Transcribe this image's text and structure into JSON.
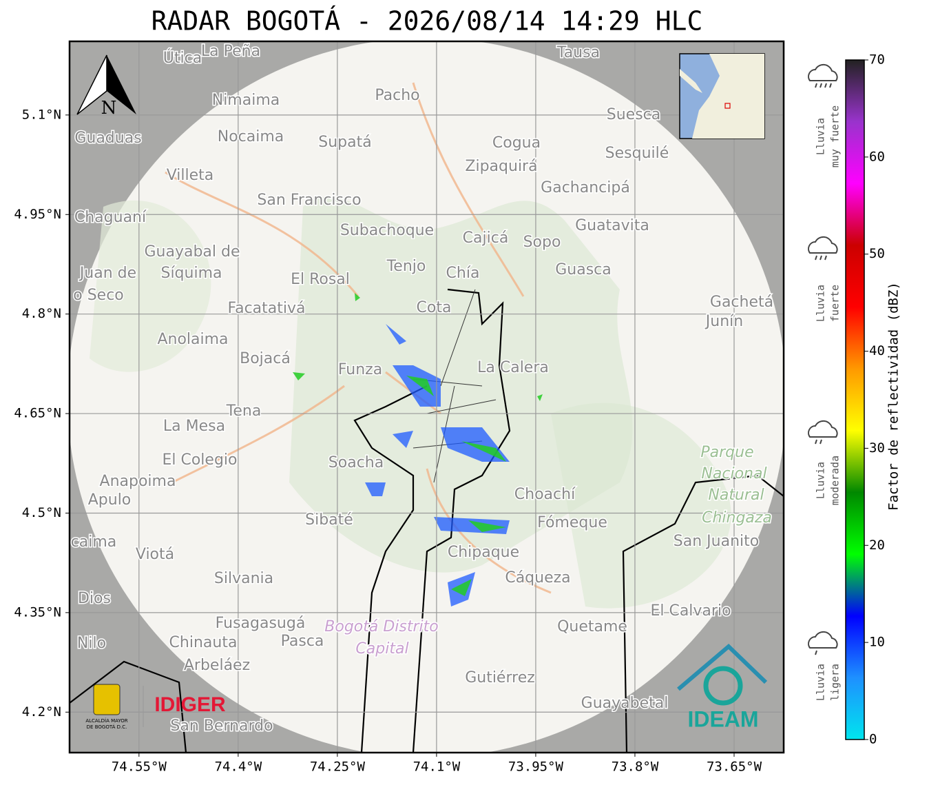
{
  "title": "RADAR BOGOTÁ - 2026/08/14 14:29 HLC",
  "north": "N",
  "map": {
    "xlim": [
      -74.655,
      -73.575
    ],
    "ylim": [
      4.139,
      5.211
    ],
    "xticks": [
      {
        "value": -74.55,
        "label": "74.55°W"
      },
      {
        "value": -74.4,
        "label": "74.4°W"
      },
      {
        "value": -74.25,
        "label": "74.25°W"
      },
      {
        "value": -74.1,
        "label": "74.1°W"
      },
      {
        "value": -73.95,
        "label": "73.95°W"
      },
      {
        "value": -73.8,
        "label": "73.8°W"
      },
      {
        "value": -73.65,
        "label": "73.65°W"
      }
    ],
    "yticks": [
      {
        "value": 4.2,
        "label": "4.2°N"
      },
      {
        "value": 4.35,
        "label": "4.35°N"
      },
      {
        "value": 4.5,
        "label": "4.5°N"
      },
      {
        "value": 4.65,
        "label": "4.65°N"
      },
      {
        "value": 4.8,
        "label": "4.8°N"
      },
      {
        "value": 4.95,
        "label": "4.95°N"
      },
      {
        "value": 5.1,
        "label": "5.1°N"
      }
    ],
    "grid": true,
    "places": [
      "Útica",
      "La Peña",
      "Tausa",
      "Pacho",
      "Nimaima",
      "Guaduas",
      "Nocaima",
      "Supatá",
      "Cogua",
      "Suesca",
      "Sesquilé",
      "Zipaquirá",
      "Villeta",
      "Gachancipá",
      "San Francisco",
      "Chaguaní",
      "Guatavita",
      "Subachoque",
      "Cajicá",
      "Sopo",
      "Guayabal de",
      "Síquima",
      "Juan de",
      "o Seco",
      "Tenjo",
      "Chía",
      "Guasca",
      "El Rosal",
      "Facatativá",
      "Cota",
      "Gachetá",
      "Junín",
      "Anolaima",
      "Bojacá",
      "Funza",
      "La Calera",
      "Tena",
      "La Mesa",
      "Parque",
      "Nacional",
      "Natural",
      "Chingaza",
      "El Colegio",
      "Soacha",
      "Anapoima",
      "Apulo",
      "Choachí",
      "Sibaté",
      "Fómeque",
      "San Juanito",
      "caima",
      "Viotá",
      "Chipaque",
      "Silvania",
      "Cáqueza",
      "Dios",
      "El Calvario",
      "Fusagasugá",
      "Bogotá Distrito",
      "Capital",
      "Quetame",
      "Nilo",
      "Chinauta",
      "Pasca",
      "Arbeláez",
      "Gutiérrez",
      "Guayabetal",
      "San Bernardo"
    ]
  },
  "colorbar": {
    "label": "Factor de reflectividad (dBZ)",
    "lim": [
      0,
      70
    ],
    "ticks": [
      0,
      10,
      20,
      30,
      40,
      50,
      60,
      70
    ],
    "colors": [
      "#00e5ee",
      "#1e90ff",
      "#0000ff",
      "#00ff00",
      "#008800",
      "#ffff00",
      "#ff9900",
      "#ff0000",
      "#cc0000",
      "#ff00ff",
      "#9933cc",
      "#222222"
    ]
  },
  "categories": [
    [
      "Lluvia",
      "muy fuerte"
    ],
    [
      "Lluvia",
      "fuerte"
    ],
    [
      "Lluvia",
      "moderada"
    ],
    [
      "Lluvia",
      "ligera"
    ]
  ],
  "logos": {
    "alcaldia": [
      "ALCALDÍA MAYOR",
      "DE BOGOTÁ D.C."
    ],
    "idiger": "IDIGER",
    "ideam": "IDEAM"
  }
}
